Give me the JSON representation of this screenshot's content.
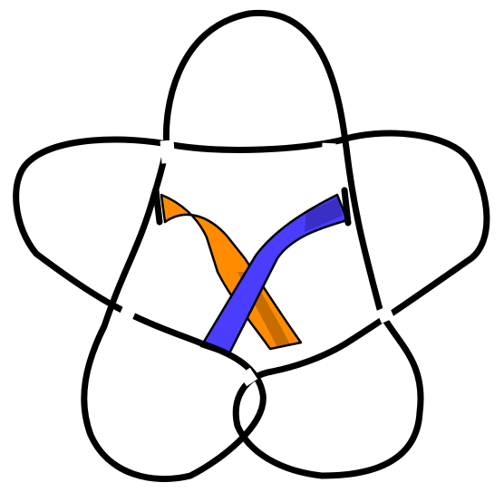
{
  "diagram": {
    "kind": "knot-diagram",
    "outline_color": "#000000",
    "background_color": "#ffffff",
    "bands": [
      {
        "name": "orange-band",
        "color": "#ff8c00"
      },
      {
        "name": "blue-band",
        "color": "#4a3dff"
      }
    ]
  }
}
